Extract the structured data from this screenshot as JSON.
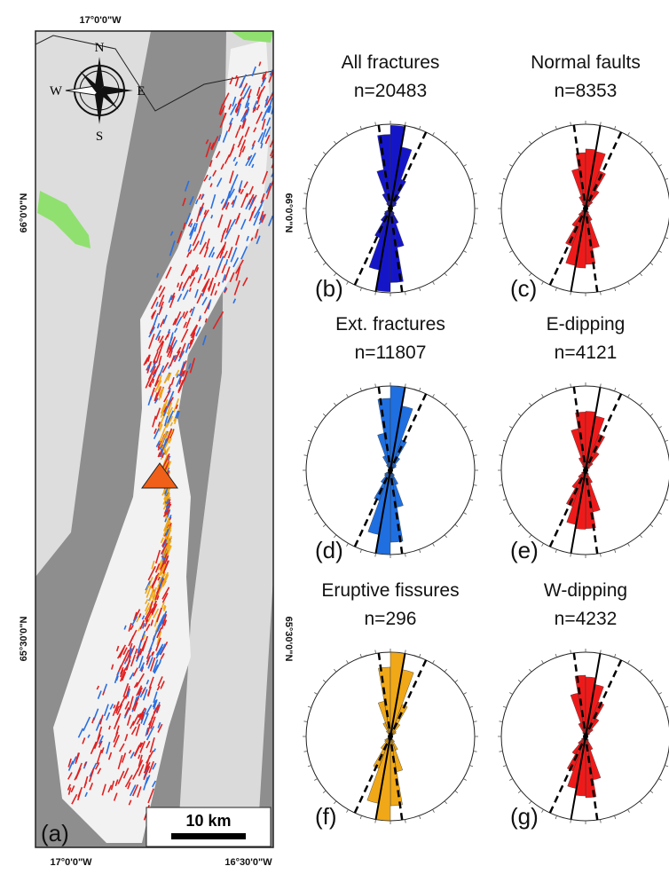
{
  "map": {
    "panel_label": "(a)",
    "scale_bar": "10 km",
    "compass": [
      "N",
      "E",
      "S",
      "W"
    ],
    "lon_labels": [
      "17°0'0\"W",
      "17°0'0\"W",
      "16°30'0\"W"
    ],
    "lat_labels": [
      "66°0'0\"N",
      "66°0'0\"N",
      "65°30'0\"N",
      "65°30'0\"N"
    ]
  },
  "rose_diagrams": [
    {
      "panel": "(b)",
      "title": "All fractures",
      "count": "n=20483",
      "color": "#1515c8"
    },
    {
      "panel": "(c)",
      "title": "Normal faults",
      "count": "n=8353",
      "color": "#ee1a1a"
    },
    {
      "panel": "(d)",
      "title": "Ext. fractures",
      "count": "n=11807",
      "color": "#1f6fe0"
    },
    {
      "panel": "(e)",
      "title": "E-dipping",
      "count": "n=4121",
      "color": "#ee1a1a"
    },
    {
      "panel": "(f)",
      "title": "Eruptive fissures",
      "count": "n=296",
      "color": "#f0a818"
    },
    {
      "panel": "(g)",
      "title": "W-dipping",
      "count": "n=4232",
      "color": "#ee1a1a"
    }
  ]
}
